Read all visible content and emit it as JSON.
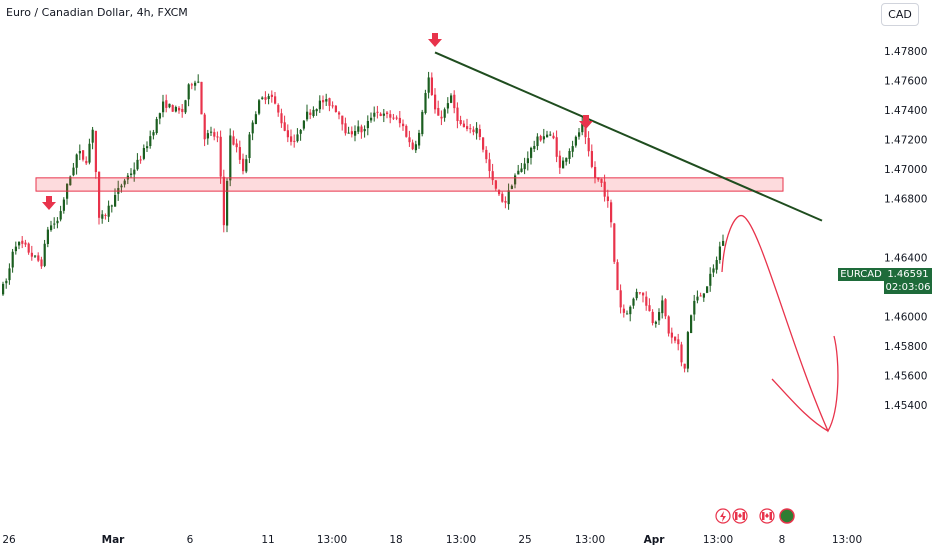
{
  "header": {
    "title": "Euro / Canadian Dollar, 4h, FXCM",
    "currency": "CAD"
  },
  "price_label": {
    "symbol": "EURCAD",
    "price": "1.46591",
    "countdown": "02:03:06"
  },
  "colors": {
    "up": "#1b5e20",
    "down": "#e8334b",
    "trendline": "#1f4d1f",
    "zone_fill": "rgba(242,54,69,0.18)",
    "zone_stroke": "#e8334b",
    "marker": "#e8334b",
    "projection": "#e8334b",
    "price_tag": "#1e6b3a"
  },
  "chart_data": {
    "type": "candlestick",
    "title": "Euro / Canadian Dollar, 4h, FXCM",
    "y_ticks": [
      "1.47800",
      "1.47600",
      "1.47400",
      "1.47200",
      "1.47000",
      "1.46800",
      "1.46400",
      "1.46200",
      "1.46000",
      "1.45800",
      "1.45600",
      "1.45400"
    ],
    "ylim": [
      1.4535,
      1.4795
    ],
    "x_ticks": [
      "26",
      "Mar",
      "6",
      "11",
      "13:00",
      "18",
      "13:00",
      "25",
      "13:00",
      "Apr",
      "13:00",
      "8",
      "13:00"
    ],
    "current_price": 1.46591,
    "resistance_zone": [
      1.4685,
      1.4694
    ],
    "trendline": {
      "from_price": 1.4779,
      "to_price": 1.4665
    },
    "bottom_icons": [
      "flash-icon",
      "ca-flag-icon",
      "ca-flag-icon",
      "globe-icon"
    ]
  }
}
